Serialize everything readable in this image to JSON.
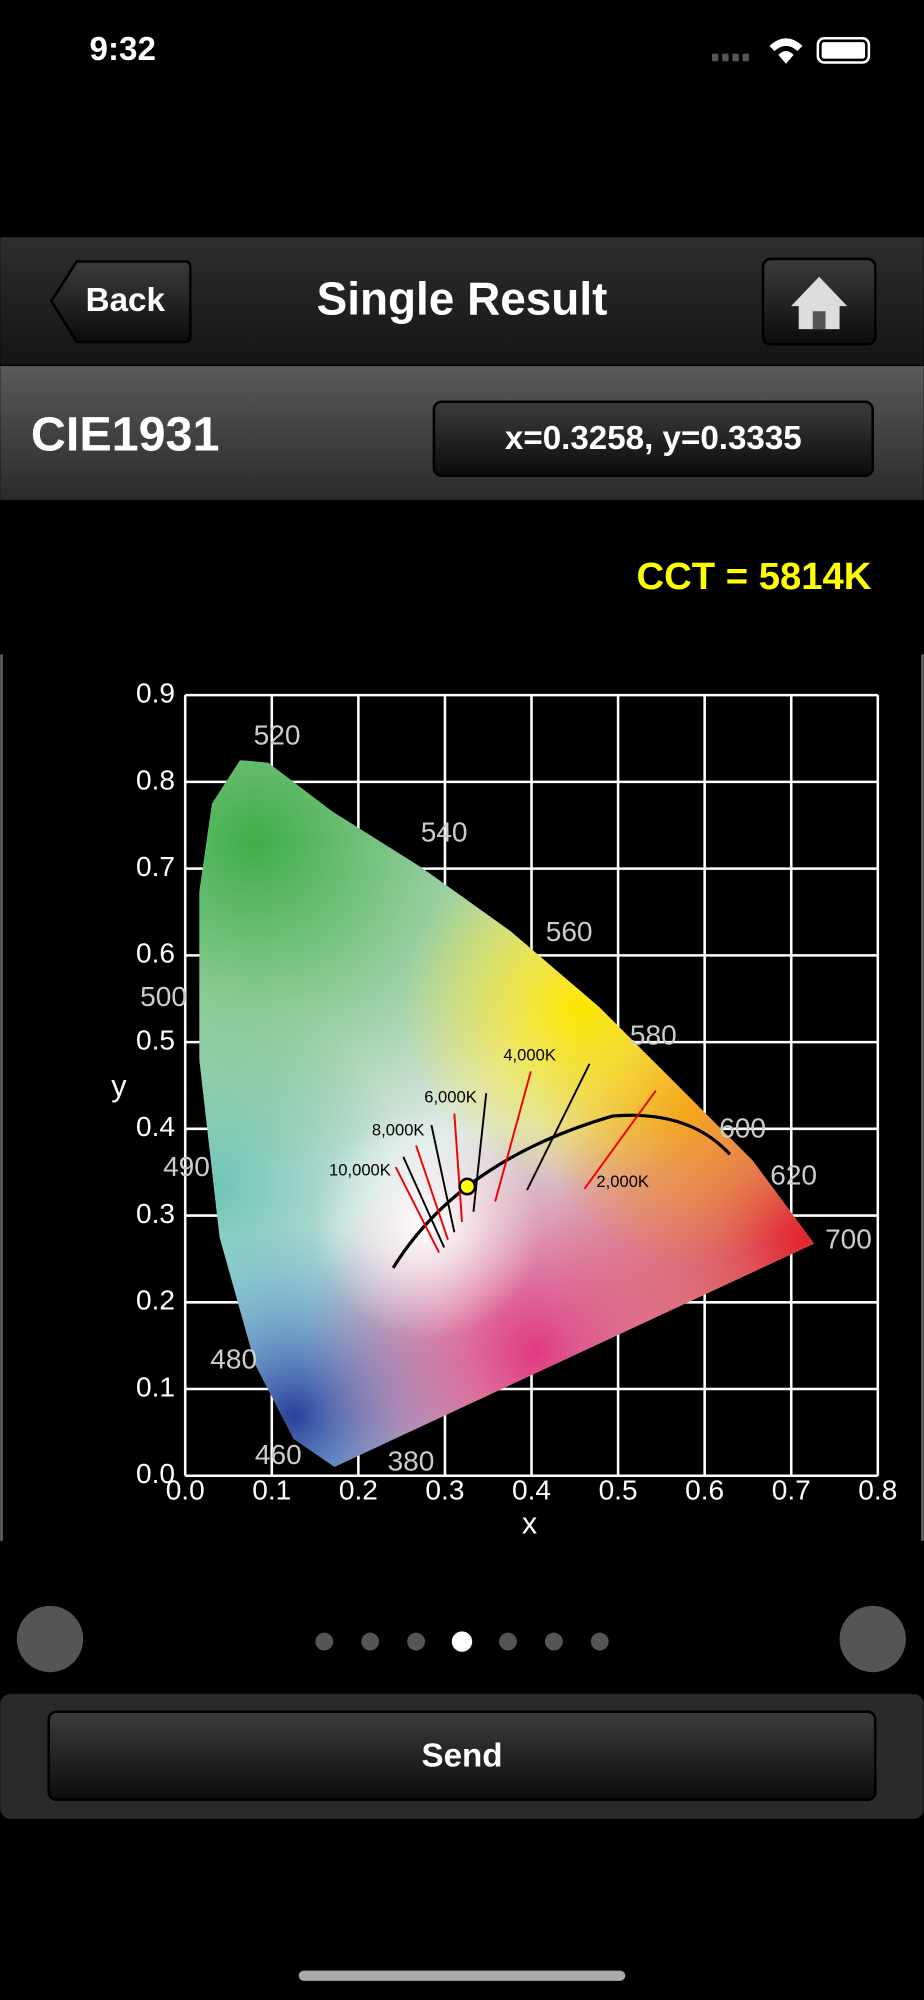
{
  "status_bar": {
    "time": "9:32"
  },
  "nav": {
    "back": "Back",
    "title": "Single Result"
  },
  "header": {
    "title": "CIE1931",
    "coordinates": "x=0.3258, y=0.3335"
  },
  "cct": "CCT = 5814K",
  "chart_data": {
    "type": "scatter",
    "x_label": "x",
    "y_label": "y",
    "xlim": [
      0,
      0.8
    ],
    "ylim": [
      0,
      0.9
    ],
    "xticks": [
      {
        "value": 0,
        "label": "0.0"
      },
      0.1,
      0.2,
      0.3,
      0.4,
      0.5,
      0.6,
      0.7,
      0.8
    ],
    "yticks": [
      {
        "value": 0,
        "label": "0.0"
      },
      0.1,
      0.2,
      0.3,
      0.4,
      0.5,
      0.6,
      0.7,
      0.8,
      0.9
    ],
    "grid": true,
    "x": [
      0.3258
    ],
    "values": [
      0.3335
    ],
    "color": "#ffff00",
    "wavelength_labels": [
      "520",
      "540",
      "560",
      "580",
      "600",
      "620",
      "700",
      "500",
      "490",
      "480",
      "460",
      "380"
    ],
    "cct_labels": [
      "10,000K",
      "8,000K",
      "6,000K",
      "4,000K",
      "2,000K"
    ]
  },
  "footer": {
    "send": "Send"
  }
}
